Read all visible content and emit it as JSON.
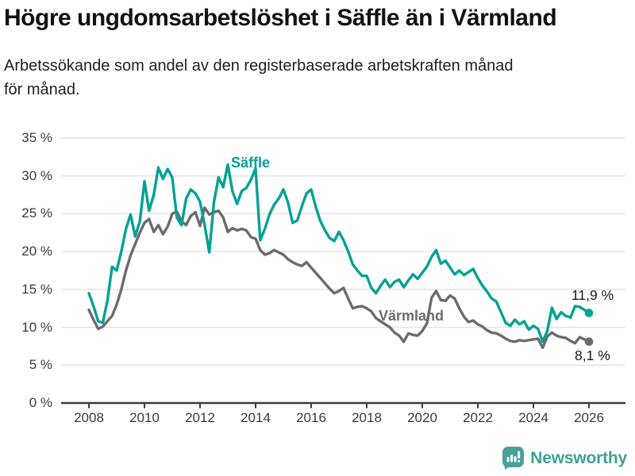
{
  "header": {
    "title": "Högre ungdomsarbetslöshet i Säffle än i Värmland",
    "subtitle": "Arbetssökande som andel av den registerbaserade arbetskraften månad\nför månad."
  },
  "chart_data": {
    "type": "line",
    "title": "Högre ungdomsarbetslöshet i Säffle än i Värmland",
    "subtitle": "Arbetssökande som andel av den registerbaserade arbetskraften månad för månad.",
    "grid": "horizontal",
    "legend_position": "inline-labels",
    "x_start": 2008.0,
    "x_step": 0.1666667,
    "xlim": [
      2007.0,
      2027.3
    ],
    "ylim": [
      0,
      35
    ],
    "y_ticks": [
      0,
      5,
      10,
      15,
      20,
      25,
      30,
      35
    ],
    "y_tick_labels": [
      "0 %",
      "5 %",
      "10 %",
      "15 %",
      "20 %",
      "25 %",
      "30 %",
      "35 %"
    ],
    "x_ticks": [
      2008,
      2010,
      2012,
      2014,
      2016,
      2018,
      2020,
      2022,
      2024,
      2026
    ],
    "x_tick_labels": [
      "2008",
      "2010",
      "2012",
      "2014",
      "2016",
      "2018",
      "2020",
      "2022",
      "2024",
      "2026"
    ],
    "colors": {
      "saffle": "#00a296",
      "varmland": "#6e6a6e",
      "gridline": "#e4e4e4",
      "axis": "#3b3b3b"
    },
    "series": [
      {
        "name": "Säffle",
        "color": "#00a296",
        "end_label": "11,9 %",
        "end_value": 11.9,
        "values": [
          14.5,
          12.8,
          10.8,
          10.6,
          13.5,
          18.0,
          17.5,
          20.0,
          23.0,
          24.9,
          22.0,
          24.0,
          29.3,
          25.4,
          27.5,
          31.1,
          29.6,
          30.9,
          29.8,
          24.5,
          23.5,
          27.0,
          28.2,
          27.7,
          26.6,
          23.5,
          19.9,
          26.5,
          29.8,
          28.5,
          31.5,
          28.0,
          26.3,
          28.0,
          28.4,
          29.5,
          31.0,
          21.5,
          23.0,
          24.9,
          26.2,
          27.0,
          28.2,
          26.5,
          23.8,
          24.1,
          26.0,
          27.7,
          28.2,
          25.9,
          24.0,
          22.8,
          21.8,
          21.4,
          22.6,
          21.5,
          20.0,
          18.3,
          17.5,
          16.8,
          16.8,
          15.2,
          14.5,
          15.5,
          16.3,
          15.3,
          16.0,
          16.3,
          15.3,
          16.2,
          17.0,
          16.4,
          17.2,
          18.0,
          19.3,
          20.2,
          18.4,
          18.8,
          17.9,
          17.0,
          17.5,
          16.9,
          17.3,
          17.7,
          16.5,
          15.5,
          14.7,
          13.8,
          13.4,
          12.0,
          10.6,
          10.2,
          11.0,
          10.4,
          10.8,
          9.7,
          10.2,
          9.8,
          8.1,
          9.5,
          12.6,
          11.1,
          12.0,
          11.5,
          11.3,
          12.8,
          12.7,
          12.3,
          11.9
        ]
      },
      {
        "name": "Värmland",
        "color": "#6e6a6e",
        "end_label": "8,1 %",
        "end_value": 8.1,
        "values": [
          12.3,
          11.0,
          9.8,
          10.1,
          10.8,
          11.5,
          13.0,
          15.0,
          17.5,
          19.5,
          21.0,
          22.5,
          23.8,
          24.3,
          22.6,
          23.5,
          22.3,
          23.3,
          25.0,
          25.3,
          24.0,
          23.5,
          24.7,
          25.2,
          23.4,
          25.8,
          24.9,
          25.2,
          25.4,
          24.5,
          22.6,
          23.1,
          22.8,
          23.0,
          22.8,
          21.9,
          21.7,
          20.2,
          19.6,
          19.8,
          20.2,
          19.9,
          19.6,
          19.0,
          18.6,
          18.3,
          18.1,
          18.6,
          17.9,
          17.2,
          16.5,
          15.8,
          15.1,
          14.5,
          14.8,
          15.2,
          13.8,
          12.5,
          12.7,
          12.8,
          12.5,
          12.1,
          11.2,
          10.8,
          10.4,
          10.0,
          9.3,
          8.9,
          8.1,
          9.2,
          9.0,
          8.9,
          9.5,
          10.5,
          13.9,
          14.8,
          13.6,
          13.5,
          14.2,
          13.8,
          12.5,
          11.4,
          10.7,
          10.9,
          10.4,
          10.1,
          9.6,
          9.3,
          9.2,
          8.9,
          8.5,
          8.2,
          8.1,
          8.3,
          8.2,
          8.3,
          8.4,
          8.5,
          7.3,
          8.8,
          9.3,
          8.9,
          8.7,
          8.6,
          8.2,
          7.9,
          8.7,
          8.4,
          8.1
        ]
      }
    ]
  },
  "footer": {
    "brand": "Newsworthy"
  }
}
